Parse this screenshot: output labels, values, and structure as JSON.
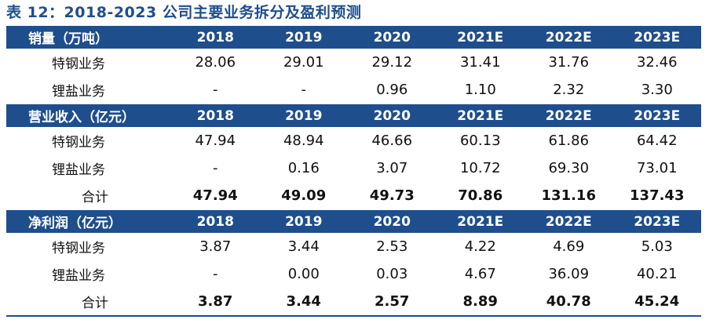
{
  "title": "表 12：2018-2023 公司主要业务拆分及盈利预测",
  "years": [
    "2018",
    "2019",
    "2020",
    "2021E",
    "2022E",
    "2023E"
  ],
  "sections": [
    {
      "header": "销量（万吨）",
      "rows": [
        {
          "label": "特钢业务",
          "values": [
            "28.06",
            "29.01",
            "29.12",
            "31.41",
            "31.76",
            "32.46"
          ]
        },
        {
          "label": "锂盐业务",
          "values": [
            "-",
            "-",
            "0.96",
            "1.10",
            "2.32",
            "3.30"
          ]
        }
      ]
    },
    {
      "header": "营业收入（亿元）",
      "rows": [
        {
          "label": "特钢业务",
          "values": [
            "47.94",
            "48.94",
            "46.66",
            "60.13",
            "61.86",
            "64.42"
          ]
        },
        {
          "label": "锂盐业务",
          "values": [
            "-",
            "0.16",
            "3.07",
            "10.72",
            "69.30",
            "73.01"
          ]
        },
        {
          "label": "合计",
          "values": [
            "47.94",
            "49.09",
            "49.73",
            "70.86",
            "131.16",
            "137.43"
          ],
          "total": true
        }
      ]
    },
    {
      "header": "净利润（亿元）",
      "rows": [
        {
          "label": "特钢业务",
          "values": [
            "3.87",
            "3.44",
            "2.53",
            "4.22",
            "4.69",
            "5.03"
          ]
        },
        {
          "label": "锂盐业务",
          "values": [
            "-",
            "0.00",
            "0.03",
            "4.67",
            "36.09",
            "40.21"
          ]
        },
        {
          "label": "合计",
          "values": [
            "3.87",
            "3.44",
            "2.57",
            "8.89",
            "40.78",
            "45.24"
          ],
          "total": true
        }
      ]
    }
  ],
  "colors": {
    "header_bg": "#1f4e8c",
    "header_text": "#ffffff",
    "title_text": "#1f4e8c"
  }
}
